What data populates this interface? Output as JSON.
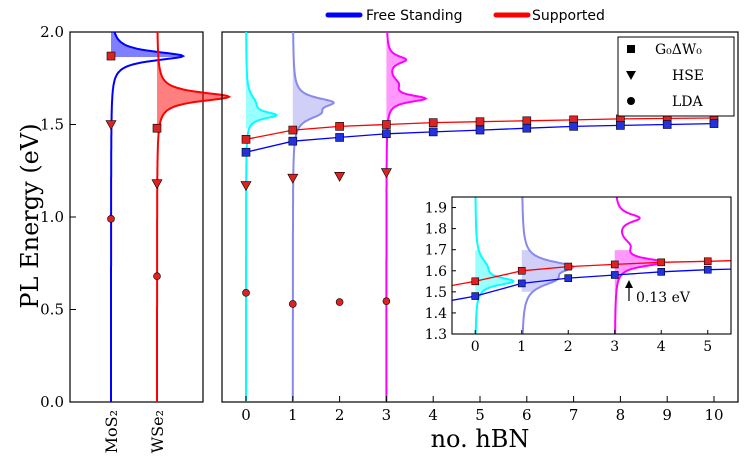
{
  "chart_data": {
    "type": "scatter",
    "legend_top": [
      {
        "label": "Free Standing",
        "color": "#0000ff"
      },
      {
        "label": "Supported",
        "color": "#ff0000"
      }
    ],
    "legend_markers": [
      {
        "label": "G₀ΔW₀",
        "marker": "square"
      },
      {
        "label": "HSE",
        "marker": "triangle-down"
      },
      {
        "label": "LDA",
        "marker": "circle"
      }
    ],
    "ylabel": "PL Energy (eV)",
    "xlabel": "no. hBN",
    "ylim": [
      0.0,
      2.0
    ],
    "yticks": [
      "0.0",
      "0.5",
      "1.0",
      "1.5",
      "2.0"
    ],
    "left_panel": {
      "categories": [
        "MoS₂",
        "WSe₂"
      ],
      "line_colors": [
        "#0000ff",
        "#ff0000"
      ],
      "points": [
        {
          "category": "MoS₂",
          "method": "G0ΔW0",
          "y": 1.87
        },
        {
          "category": "MoS₂",
          "method": "HSE",
          "y": 1.5
        },
        {
          "category": "MoS₂",
          "method": "LDA",
          "y": 0.99
        },
        {
          "category": "WSe₂",
          "method": "G0ΔW0",
          "y": 1.48
        },
        {
          "category": "WSe₂",
          "method": "HSE",
          "y": 1.18
        },
        {
          "category": "WSe₂",
          "method": "LDA",
          "y": 0.68
        }
      ],
      "pl_peaks": [
        {
          "category": "MoS₂",
          "center": 1.87,
          "color": "#0000ff"
        },
        {
          "category": "WSe₂",
          "center": 1.65,
          "color": "#ff0000"
        }
      ]
    },
    "main_panel": {
      "xlim": [
        -0.5,
        10.5
      ],
      "xticks": [
        "0",
        "1",
        "2",
        "3",
        "4",
        "5",
        "6",
        "7",
        "8",
        "9",
        "10"
      ],
      "series": [
        {
          "name": "Supported",
          "method": "G0ΔW0",
          "color": "#ff0000",
          "x": [
            0,
            1,
            2,
            3,
            4,
            5,
            6,
            7,
            8,
            9,
            10
          ],
          "y": [
            1.42,
            1.47,
            1.49,
            1.5,
            1.51,
            1.515,
            1.52,
            1.525,
            1.53,
            1.533,
            1.535
          ]
        },
        {
          "name": "Free Standing",
          "method": "G0ΔW0",
          "color": "#0000ff",
          "x": [
            0,
            1,
            2,
            3,
            4,
            5,
            6,
            7,
            8,
            9,
            10
          ],
          "y": [
            1.35,
            1.41,
            1.43,
            1.45,
            1.46,
            1.47,
            1.48,
            1.49,
            1.495,
            1.5,
            1.505
          ]
        },
        {
          "name": "Supported",
          "method": "HSE",
          "color": "#ff0000",
          "x": [
            0,
            1,
            2,
            3
          ],
          "y": [
            1.17,
            1.21,
            1.22,
            1.24
          ]
        },
        {
          "name": "Supported",
          "method": "LDA",
          "color": "#ff0000",
          "x": [
            0,
            1,
            2,
            3
          ],
          "y": [
            0.59,
            0.53,
            0.54,
            0.545
          ]
        }
      ],
      "pl_spectra": [
        {
          "x": 0,
          "color": "#00ffff",
          "peaks": [
            {
              "center": 1.55,
              "height": 0.45,
              "width": 0.022
            },
            {
              "center": 1.62,
              "height": 0.12,
              "width": 0.05
            }
          ]
        },
        {
          "x": 1,
          "color": "#8888ee",
          "peaks": [
            {
              "center": 1.62,
              "height": 0.55,
              "width": 0.03
            },
            {
              "center": 1.56,
              "height": 0.35,
              "width": 0.04
            }
          ]
        },
        {
          "x": 3,
          "color": "#ff00ff",
          "peaks": [
            {
              "center": 1.64,
              "height": 0.6,
              "width": 0.022
            },
            {
              "center": 1.85,
              "height": 0.3,
              "width": 0.025
            },
            {
              "center": 1.72,
              "height": 0.15,
              "width": 0.04
            }
          ]
        }
      ]
    },
    "inset": {
      "xlim": [
        -0.5,
        5.5
      ],
      "ylim": [
        1.3,
        1.95
      ],
      "xticks": [
        "0",
        "1",
        "2",
        "3",
        "4",
        "5"
      ],
      "yticks": [
        "1.3",
        "1.4",
        "1.5",
        "1.6",
        "1.7",
        "1.8",
        "1.9"
      ],
      "series": [
        {
          "name": "Supported",
          "color": "#ff0000",
          "x": [
            0,
            1,
            2,
            3,
            4,
            5
          ],
          "y": [
            1.55,
            1.6,
            1.62,
            1.63,
            1.64,
            1.645
          ]
        },
        {
          "name": "Free Standing",
          "color": "#0000ff",
          "x": [
            0,
            1,
            2,
            3,
            4,
            5
          ],
          "y": [
            1.48,
            1.54,
            1.565,
            1.58,
            1.595,
            1.605
          ]
        }
      ],
      "annotation": "0.13 eV"
    }
  }
}
